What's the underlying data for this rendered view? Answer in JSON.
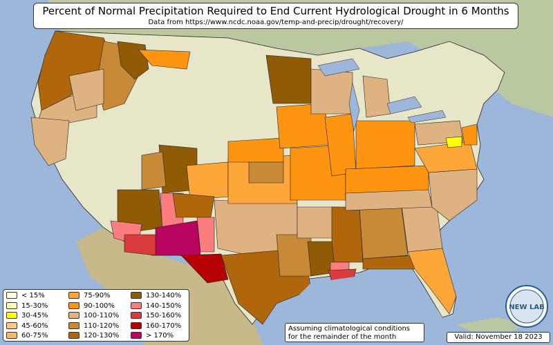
{
  "title": "Percent of Normal Precipitation Required to End Current Hydrological Drought in 6 Months",
  "subtitle": "Data from https://www.ncdc.noaa.gov/temp-and-precip/drought/recovery/",
  "legend": [
    {
      "label": "< 15%",
      "color": "#fffde0"
    },
    {
      "label": "15-30%",
      "color": "#ffffb0"
    },
    {
      "label": "30-45%",
      "color": "#ffff00"
    },
    {
      "label": "45-60%",
      "color": "#fcc98a"
    },
    {
      "label": "60-75%",
      "color": "#fdb765"
    },
    {
      "label": "75-90%",
      "color": "#fda63a"
    },
    {
      "label": "90-100%",
      "color": "#ff9410"
    },
    {
      "label": "100-110%",
      "color": "#dfb381"
    },
    {
      "label": "110-120%",
      "color": "#c88a37"
    },
    {
      "label": "120-130%",
      "color": "#b0660a"
    },
    {
      "label": "130-140%",
      "color": "#8f5c05"
    },
    {
      "label": "140-150%",
      "color": "#fb7d7d"
    },
    {
      "label": "150-160%",
      "color": "#d93a3a"
    },
    {
      "label": "160-170%",
      "color": "#b40202"
    },
    {
      "label": "> 170%",
      "color": "#b8045f"
    }
  ],
  "note_line1": "Assuming climatological conditions",
  "note_line2": "for the remainder of the month",
  "valid": "Valid: November 18 2023",
  "logo_text": "NEW LAB"
}
